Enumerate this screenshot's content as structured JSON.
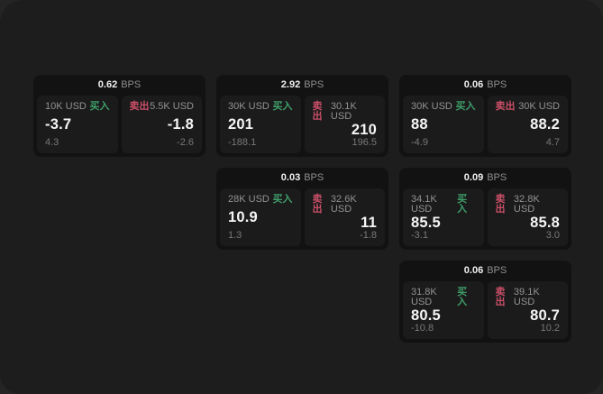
{
  "window": {
    "background": "#1d1d1d",
    "outer_background": "#242424"
  },
  "colors": {
    "buy_green": "#3f9e6a",
    "sell_red": "#ca4f68",
    "card_bg": "#121212",
    "panel_bg": "#1b1b1b",
    "value_text": "#f5f5f5",
    "label_gray": "#929292",
    "sub_gray": "#787878"
  },
  "labels": {
    "bps_unit": "BPS",
    "buy": "买入",
    "sell": "卖出"
  },
  "cards": [
    {
      "id": "quote-tile-1",
      "row": 1,
      "col": 1,
      "bps": "0.62",
      "buy": {
        "size": "10K USD",
        "value": "-3.7",
        "sub": "4.3"
      },
      "sell": {
        "size": "5.5K USD",
        "value": "-1.8",
        "sub": "-2.6"
      }
    },
    {
      "id": "quote-tile-2",
      "row": 1,
      "col": 2,
      "bps": "2.92",
      "buy": {
        "size": "30K USD",
        "value": "201",
        "sub": "-188.1"
      },
      "sell": {
        "size": "30.1K USD",
        "value": "210",
        "sub": "196.5"
      }
    },
    {
      "id": "quote-tile-3",
      "row": 1,
      "col": 3,
      "bps": "0.06",
      "buy": {
        "size": "30K USD",
        "value": "88",
        "sub": "-4.9"
      },
      "sell": {
        "size": "30K USD",
        "value": "88.2",
        "sub": "4.7"
      }
    },
    {
      "id": "quote-tile-4",
      "row": 2,
      "col": 2,
      "bps": "0.03",
      "buy": {
        "size": "28K USD",
        "value": "10.9",
        "sub": "1.3"
      },
      "sell": {
        "size": "32.6K USD",
        "value": "11",
        "sub": "-1.8"
      }
    },
    {
      "id": "quote-tile-5",
      "row": 2,
      "col": 3,
      "bps": "0.09",
      "buy": {
        "size": "34.1K USD",
        "value": "85.5",
        "sub": "-3.1"
      },
      "sell": {
        "size": "32.8K USD",
        "value": "85.8",
        "sub": "3.0"
      }
    },
    {
      "id": "quote-tile-6",
      "row": 3,
      "col": 3,
      "bps": "0.06",
      "buy": {
        "size": "31.8K USD",
        "value": "80.5",
        "sub": "-10.8"
      },
      "sell": {
        "size": "39.1K USD",
        "value": "80.7",
        "sub": "10.2"
      }
    }
  ]
}
